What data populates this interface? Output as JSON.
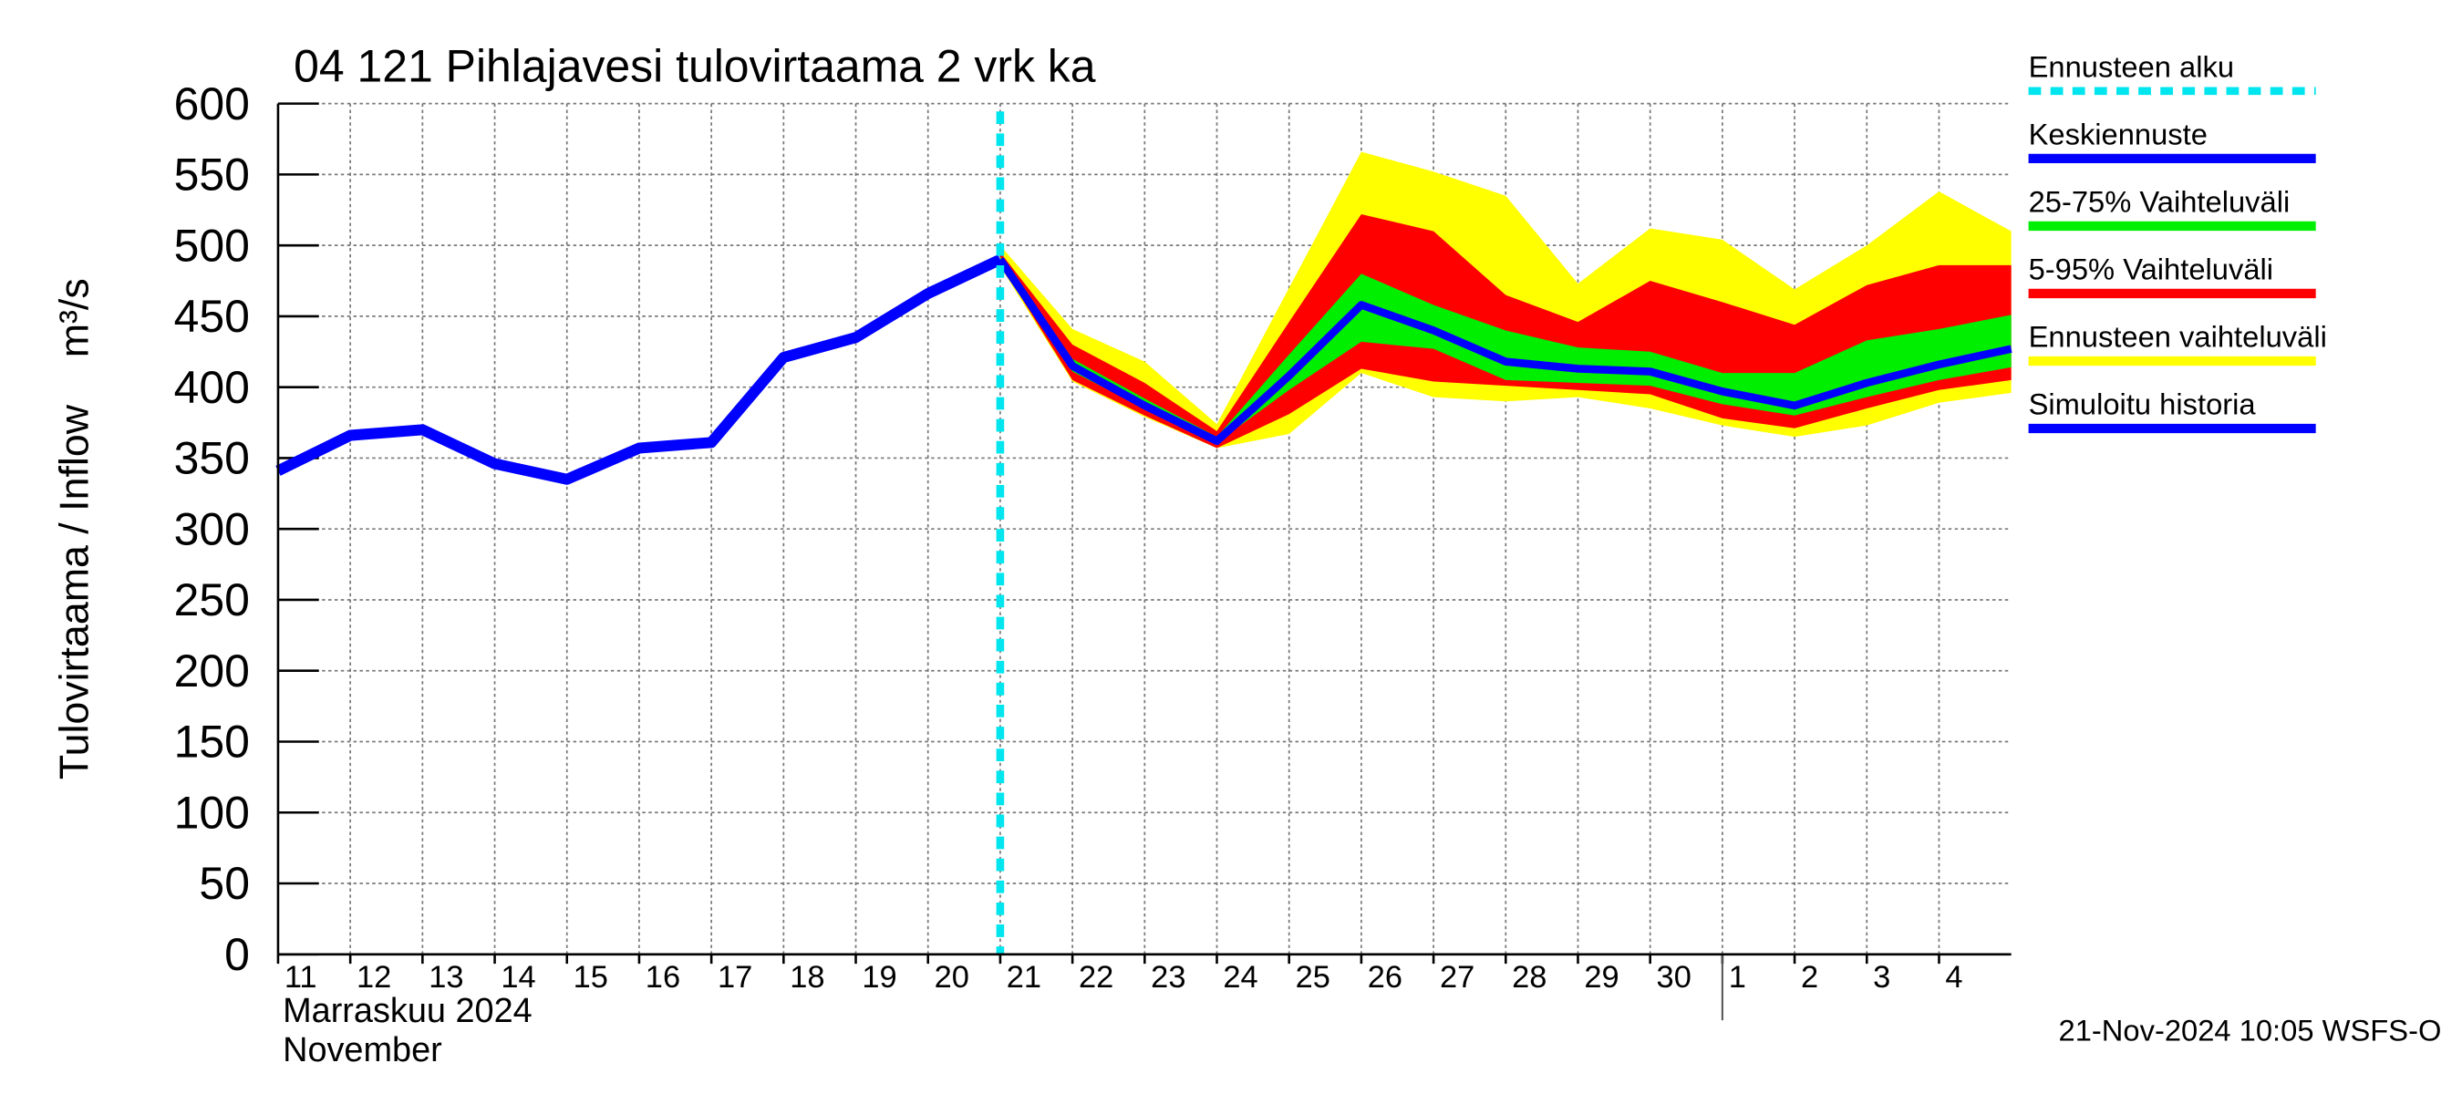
{
  "chart_data": {
    "type": "line",
    "title": "04 121 Pihlajavesi tulovirtaama 2 vrk ka",
    "ylabel": "Tulovirtaama / Inflow",
    "yunit": "m³/s",
    "xlabel_lines": [
      "Marraskuu 2024",
      "November"
    ],
    "footer": "21-Nov-2024 10:05 WSFS-O",
    "xlim": [
      0,
      24
    ],
    "xticks": [
      {
        "value": 0,
        "label": "11"
      },
      {
        "value": 1,
        "label": "12"
      },
      {
        "value": 2,
        "label": "13"
      },
      {
        "value": 3,
        "label": "14"
      },
      {
        "value": 4,
        "label": "15"
      },
      {
        "value": 5,
        "label": "16"
      },
      {
        "value": 6,
        "label": "17"
      },
      {
        "value": 7,
        "label": "18"
      },
      {
        "value": 8,
        "label": "19"
      },
      {
        "value": 9,
        "label": "20"
      },
      {
        "value": 10,
        "label": "21"
      },
      {
        "value": 11,
        "label": "22"
      },
      {
        "value": 12,
        "label": "23"
      },
      {
        "value": 13,
        "label": "24"
      },
      {
        "value": 14,
        "label": "25"
      },
      {
        "value": 15,
        "label": "26"
      },
      {
        "value": 16,
        "label": "27"
      },
      {
        "value": 17,
        "label": "28"
      },
      {
        "value": 18,
        "label": "29"
      },
      {
        "value": 19,
        "label": "30"
      },
      {
        "value": 20,
        "label": "1"
      },
      {
        "value": 21,
        "label": "2"
      },
      {
        "value": 22,
        "label": "3"
      },
      {
        "value": 23,
        "label": "4"
      }
    ],
    "month_boundary": 20,
    "ylim": [
      0,
      600
    ],
    "yticks": [
      0,
      50,
      100,
      150,
      200,
      250,
      300,
      350,
      400,
      450,
      500,
      550,
      600
    ],
    "grid": true,
    "forecast_start": {
      "name": "Ennusteen alku",
      "x": 10,
      "color": "#00e5ee"
    },
    "series": [
      {
        "name": "Keskiennuste",
        "kind": "line",
        "color": "#0000ff",
        "width": 5,
        "x": [
          10,
          11,
          12,
          13,
          14,
          15,
          16,
          17,
          18,
          19,
          20,
          21,
          22,
          23,
          24
        ],
        "values": [
          490,
          415,
          387,
          362,
          408,
          458,
          440,
          418,
          413,
          411,
          397,
          387,
          403,
          416,
          427
        ]
      },
      {
        "name": "25-75% Vaihteluväli",
        "kind": "band",
        "color": "#00ee00",
        "x": [
          10,
          11,
          12,
          13,
          14,
          15,
          16,
          17,
          18,
          19,
          20,
          21,
          22,
          23,
          24
        ],
        "upper": [
          492,
          420,
          392,
          365,
          423,
          480,
          458,
          440,
          428,
          425,
          410,
          410,
          433,
          441,
          451
        ],
        "lower": [
          489,
          411,
          385,
          361,
          398,
          432,
          427,
          405,
          403,
          401,
          388,
          380,
          393,
          405,
          414
        ]
      },
      {
        "name": "5-95% Vaihteluväli",
        "kind": "band",
        "color": "#ff0000",
        "x": [
          10,
          11,
          12,
          13,
          14,
          15,
          16,
          17,
          18,
          19,
          20,
          21,
          22,
          23,
          24
        ],
        "upper": [
          495,
          430,
          403,
          369,
          446,
          522,
          510,
          465,
          446,
          475,
          460,
          444,
          472,
          486,
          486
        ],
        "lower": [
          487,
          405,
          380,
          357,
          381,
          413,
          404,
          401,
          398,
          395,
          378,
          371,
          385,
          398,
          405
        ]
      },
      {
        "name": "Ennusteen vaihteluväli",
        "kind": "band",
        "color": "#ffff00",
        "x": [
          10,
          11,
          12,
          13,
          14,
          15,
          16,
          17,
          18,
          19,
          20,
          21,
          22,
          23,
          24
        ],
        "upper": [
          500,
          441,
          418,
          374,
          470,
          566,
          552,
          535,
          473,
          512,
          504,
          469,
          500,
          538,
          510
        ],
        "lower": [
          485,
          404,
          379,
          357,
          367,
          410,
          393,
          390,
          393,
          385,
          373,
          365,
          373,
          389,
          396
        ]
      },
      {
        "name": "Simuloitu historia",
        "kind": "line",
        "color": "#0000ff",
        "width": 7,
        "x": [
          0,
          1,
          2,
          3,
          4,
          5,
          6,
          7,
          8,
          9,
          10
        ],
        "values": [
          341,
          366,
          370,
          346,
          335,
          357,
          361,
          421,
          435,
          466,
          490
        ]
      }
    ]
  }
}
